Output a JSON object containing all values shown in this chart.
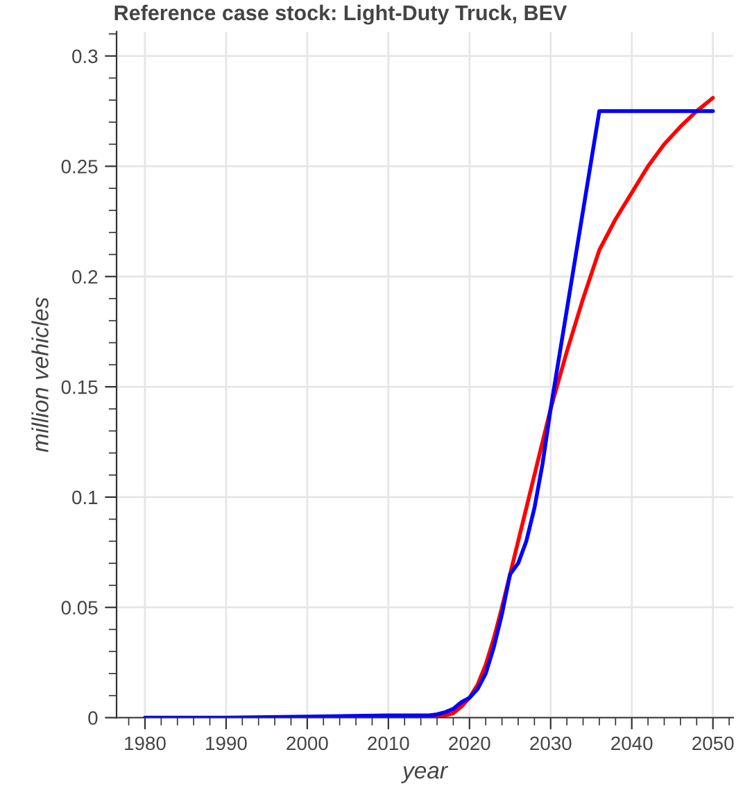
{
  "chart_data": {
    "type": "line",
    "title": "Reference case stock: Light-Duty Truck, BEV",
    "xlabel": "year",
    "ylabel": "million vehicles",
    "xlim": [
      1976.5,
      2052.5
    ],
    "xticks": [
      1980,
      1990,
      2000,
      2010,
      2020,
      2030,
      2040,
      2050
    ],
    "ylim": [
      0,
      0.311
    ],
    "yticks": [
      0,
      0.05,
      0.1,
      0.15,
      0.2,
      0.25,
      0.3
    ],
    "grid": true,
    "legend": false,
    "marker": "none",
    "line_style": "solid",
    "series": [
      {
        "color": "#ff0000",
        "x": [
          2010,
          2016,
          2017,
          2018,
          2019,
          2020,
          2021,
          2022,
          2023,
          2024,
          2025,
          2026,
          2027,
          2028,
          2029,
          2030,
          2032,
          2034,
          2036,
          2038,
          2040,
          2042,
          2044,
          2046,
          2048,
          2050
        ],
        "values": [
          0.0,
          0.0,
          0.001,
          0.002,
          0.005,
          0.009,
          0.015,
          0.024,
          0.036,
          0.05,
          0.065,
          0.08,
          0.095,
          0.11,
          0.125,
          0.14,
          0.166,
          0.19,
          0.212,
          0.226,
          0.238,
          0.25,
          0.26,
          0.268,
          0.275,
          0.281
        ]
      },
      {
        "color": "#0000ff",
        "x": [
          1980,
          1990,
          2000,
          2010,
          2015,
          2016,
          2017,
          2018,
          2019,
          2020,
          2021,
          2022,
          2023,
          2024,
          2025,
          2026,
          2027,
          2028,
          2029,
          2030,
          2036,
          2050
        ],
        "values": [
          0.0,
          0.0,
          0.0005,
          0.001,
          0.001,
          0.0015,
          0.0025,
          0.004,
          0.007,
          0.009,
          0.013,
          0.02,
          0.032,
          0.047,
          0.065,
          0.07,
          0.08,
          0.095,
          0.115,
          0.14,
          0.275,
          0.275
        ]
      }
    ]
  }
}
